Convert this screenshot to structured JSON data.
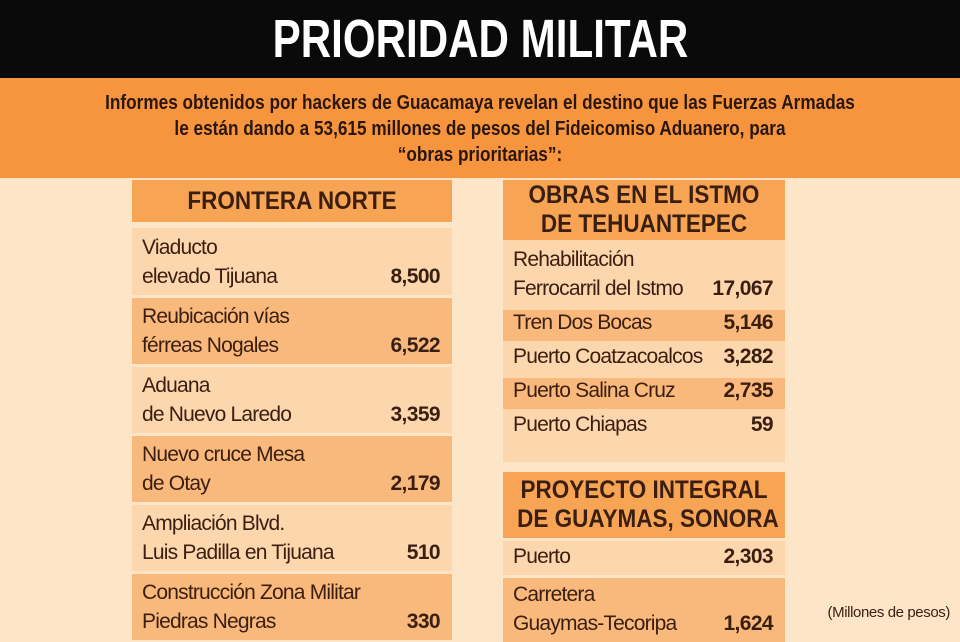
{
  "title": "PRIORIDAD MILITAR",
  "intro": [
    "Informes obtenidos por hackers de Guacamaya revelan el destino que las Fuerzas Armadas",
    "le están dando a 53,615 millones de pesos del Fideicomiso Aduanero, para",
    "“obras prioritarias”:"
  ],
  "frontera": {
    "header": [
      "FRONTERA NORTE"
    ],
    "rows": [
      {
        "label": [
          "Viaducto",
          "elevado Tijuana"
        ],
        "value": "8,500"
      },
      {
        "label": [
          "Reubicación vías",
          "férreas Nogales"
        ],
        "value": "6,522"
      },
      {
        "label": [
          "Aduana",
          "de Nuevo Laredo"
        ],
        "value": "3,359"
      },
      {
        "label": [
          "Nuevo cruce Mesa",
          "de Otay"
        ],
        "value": "2,179"
      },
      {
        "label": [
          "Ampliación Blvd.",
          "Luis Padilla en Tijuana"
        ],
        "value": "510"
      },
      {
        "label": [
          "Construcción Zona Militar",
          "Piedras Negras"
        ],
        "value": "330"
      }
    ]
  },
  "istmo": {
    "header": [
      "OBRAS EN EL ISTMO",
      "DE TEHUANTEPEC"
    ],
    "rows": [
      {
        "label": [
          "Rehabilitación",
          "Ferrocarril del Istmo"
        ],
        "value": "17,067"
      },
      {
        "label": [
          "Tren Dos Bocas"
        ],
        "value": "5,146"
      },
      {
        "label": [
          "Puerto Coatzacoalcos"
        ],
        "value": "3,282"
      },
      {
        "label": [
          "Puerto Salina Cruz"
        ],
        "value": "2,735"
      },
      {
        "label": [
          "Puerto Chiapas"
        ],
        "value": "59"
      }
    ]
  },
  "guaymas": {
    "header": [
      "PROYECTO INTEGRAL",
      "DE GUAYMAS, SONORA"
    ],
    "rows": [
      {
        "label": [
          "Puerto"
        ],
        "value": "2,303"
      },
      {
        "label": [
          "Carretera",
          "Guaymas-Tecoripa"
        ],
        "value": "1,624"
      }
    ]
  },
  "note": "(Millones de pesos)",
  "colors": {
    "background": "#fde5c8",
    "band": "#f7953f",
    "header": "#f7a455",
    "row_light": "#fcd6ad",
    "row_dark": "#f9b97c",
    "title_bar": "#0a0a0a"
  }
}
